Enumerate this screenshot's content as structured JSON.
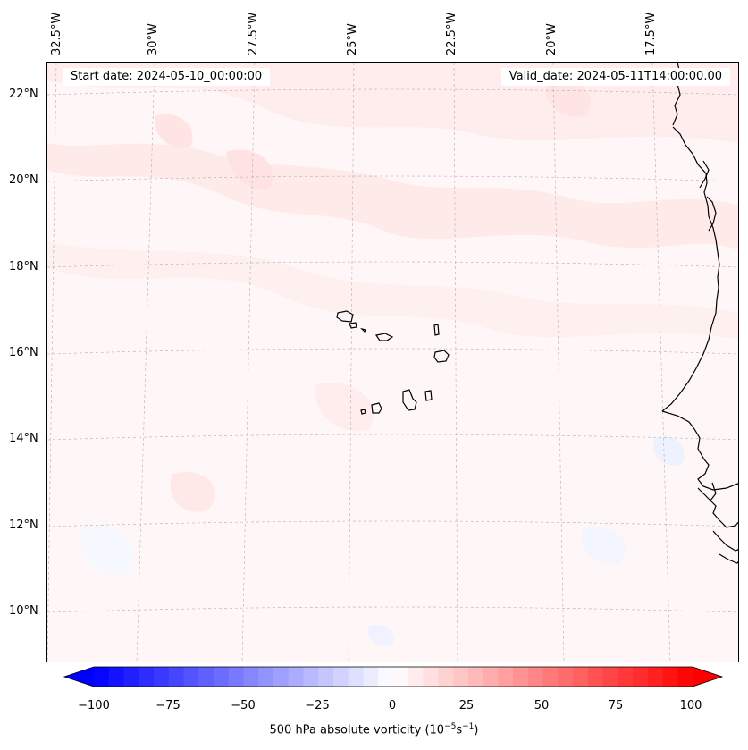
{
  "map": {
    "start_date": "Start date: 2024-05-10_00:00:00",
    "valid_date": "Valid_date: 2024-05-11T14:00:00.00",
    "longitude_labels": [
      "32.5°W",
      "30°W",
      "27.5°W",
      "25°W",
      "22.5°W",
      "20°W",
      "17.5°W"
    ],
    "latitude_labels": [
      "22°N",
      "20°N",
      "18°N",
      "16°N",
      "14°N",
      "12°N",
      "10°N"
    ],
    "field": "500 hPa absolute vorticity",
    "colormap": "bwr",
    "colors": {
      "min": "#0000ff",
      "mid": "#ffffff",
      "max": "#ff0000",
      "coast": "#000000",
      "grid": "#b0b0b0"
    }
  },
  "colorbar": {
    "label_prefix": "500 hPa absolute vorticity (10",
    "label_exp1": "−5",
    "label_mid": "s",
    "label_exp2": "−1",
    "label_suffix": ")",
    "min": -100,
    "max": 100,
    "extend": "both",
    "ticks": [
      "−100",
      "−75",
      "−50",
      "−25",
      "0",
      "25",
      "50",
      "75",
      "100"
    ]
  }
}
